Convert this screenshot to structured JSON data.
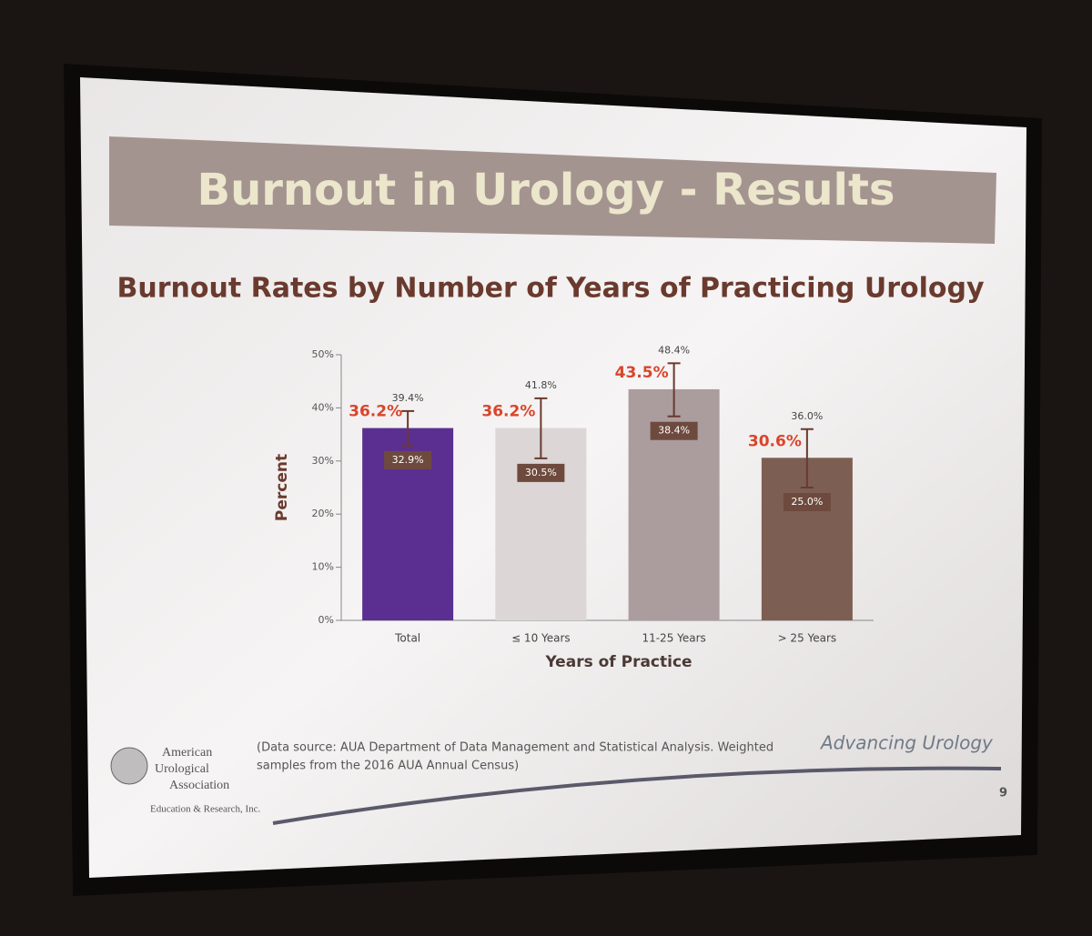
{
  "slide": {
    "title": "Burnout in Urology - Results",
    "footnote": [
      "(Data source:  AUA Department of Data Management and Statistical Analysis. Weighted",
      "samples from the  2016 AUA Annual Census)"
    ],
    "logo": [
      "American",
      "Urological",
      "Association"
    ],
    "logo_subtitle": "Education & Research, Inc.",
    "tagline": "Advancing Urology",
    "page_number": "9"
  },
  "chart_data": {
    "type": "bar",
    "title": "Burnout Rates by Number of Years of Practicing Urology",
    "xlabel": "Years of Practice",
    "ylabel": "Percent",
    "categories": [
      "Total",
      "≤ 10 Years",
      "11-25 Years",
      "> 25 Years"
    ],
    "values": [
      36.2,
      36.2,
      43.5,
      30.6
    ],
    "value_labels": [
      "36.2%",
      "36.2%",
      "43.5%",
      "30.6%"
    ],
    "colors": [
      "#5b2f91",
      "#dcd6d6",
      "#ab9d9d",
      "#7d5e52"
    ],
    "error_upper": [
      39.4,
      41.8,
      48.4,
      36.0
    ],
    "error_upper_labels": [
      "39.4%",
      "41.8%",
      "48.4%",
      "36.0%"
    ],
    "error_lower": [
      32.9,
      30.5,
      38.4,
      25.0
    ],
    "error_lower_labels": [
      "32.9%",
      "30.5%",
      "38.4%",
      "25.0%"
    ],
    "ylim": [
      0,
      50
    ],
    "yticks": [
      {
        "value": 0,
        "label": "0%"
      },
      {
        "value": 10,
        "label": "10%"
      },
      {
        "value": 20,
        "label": "20%"
      },
      {
        "value": 30,
        "label": "30%"
      },
      {
        "value": 40,
        "label": "40%"
      },
      {
        "value": 50,
        "label": "50%"
      }
    ]
  }
}
